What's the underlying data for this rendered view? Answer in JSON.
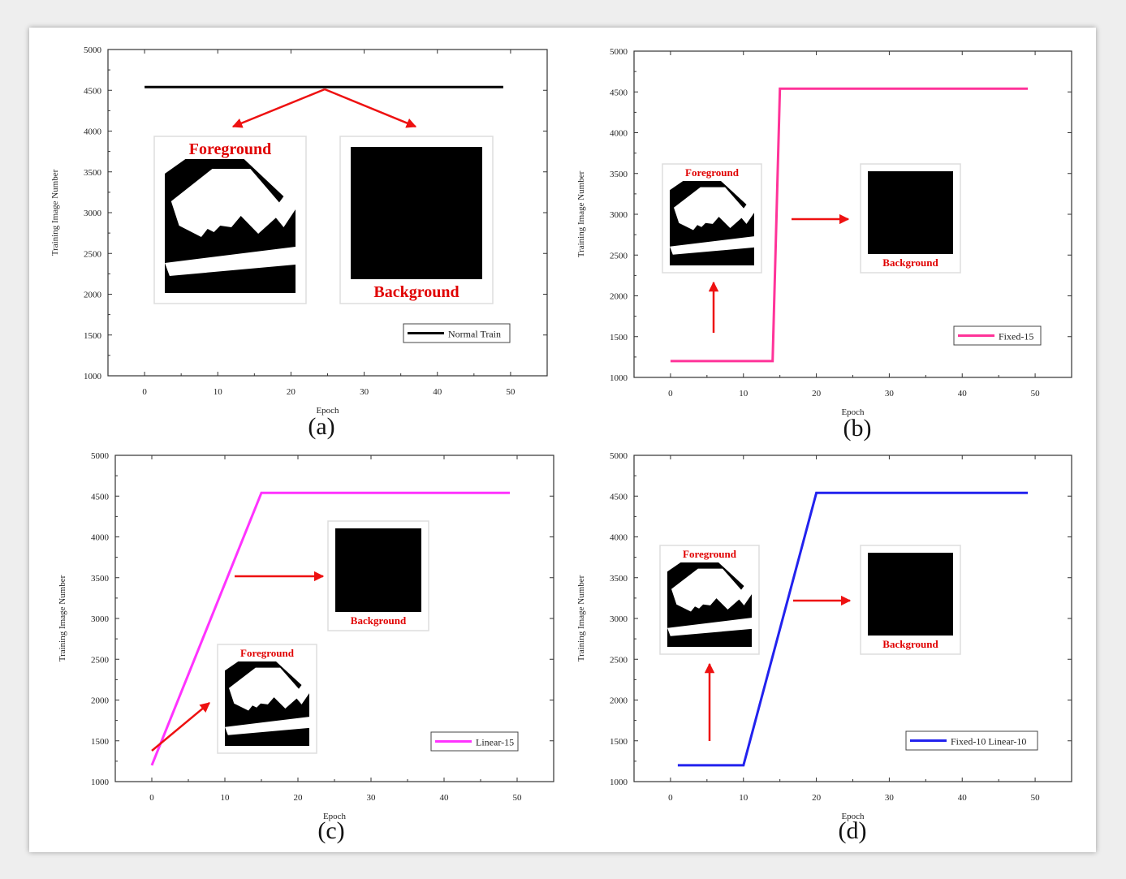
{
  "chart_data": [
    {
      "panel": "(a)",
      "type": "line",
      "xlabel": "Epoch",
      "ylabel": "Training Image Number",
      "xlim": [
        -5,
        55
      ],
      "ylim": [
        1000,
        5000
      ],
      "xticks": [
        0,
        10,
        20,
        30,
        40,
        50
      ],
      "yticks": [
        1000,
        1500,
        2000,
        2500,
        3000,
        3500,
        4000,
        4500,
        5000
      ],
      "series": [
        {
          "name": "Normal Train",
          "color": "#000000",
          "x": [
            0,
            49
          ],
          "y": [
            4540,
            4540
          ]
        }
      ],
      "legend_position": "bottom-right",
      "annotations": {
        "foreground_label": "Foreground",
        "background_label": "Background"
      }
    },
    {
      "panel": "(b)",
      "type": "line",
      "xlabel": "Epoch",
      "ylabel": "Training Image Number",
      "xlim": [
        -5,
        55
      ],
      "ylim": [
        1000,
        5000
      ],
      "xticks": [
        0,
        10,
        20,
        30,
        40,
        50
      ],
      "yticks": [
        1000,
        1500,
        2000,
        2500,
        3000,
        3500,
        4000,
        4500,
        5000
      ],
      "series": [
        {
          "name": "Fixed-15",
          "color": "#ff3399",
          "x": [
            0,
            14,
            15,
            49
          ],
          "y": [
            1200,
            1200,
            4540,
            4540
          ]
        }
      ],
      "legend_position": "bottom-right",
      "annotations": {
        "foreground_label": "Foreground",
        "background_label": "Background"
      }
    },
    {
      "panel": "(c)",
      "type": "line",
      "xlabel": "Epoch",
      "ylabel": "Training Image Number",
      "xlim": [
        -5,
        55
      ],
      "ylim": [
        1000,
        5000
      ],
      "xticks": [
        0,
        10,
        20,
        30,
        40,
        50
      ],
      "yticks": [
        1000,
        1500,
        2000,
        2500,
        3000,
        3500,
        4000,
        4500,
        5000
      ],
      "series": [
        {
          "name": "Linear-15",
          "color": "#ff33ff",
          "x": [
            0,
            15,
            49
          ],
          "y": [
            1200,
            4540,
            4540
          ]
        }
      ],
      "legend_position": "bottom-right",
      "annotations": {
        "foreground_label": "Foreground",
        "background_label": "Background"
      }
    },
    {
      "panel": "(d)",
      "type": "line",
      "xlabel": "Epoch",
      "ylabel": "Training Image Number",
      "xlim": [
        -5,
        55
      ],
      "ylim": [
        1000,
        5000
      ],
      "xticks": [
        0,
        10,
        20,
        30,
        40,
        50
      ],
      "yticks": [
        1000,
        1500,
        2000,
        2500,
        3000,
        3500,
        4000,
        4500,
        5000
      ],
      "series": [
        {
          "name": "Fixed-10 Linear-10",
          "color": "#2222ee",
          "x": [
            1,
            10,
            20,
            49
          ],
          "y": [
            1200,
            1200,
            4540,
            4540
          ]
        }
      ],
      "legend_position": "bottom-right",
      "annotations": {
        "foreground_label": "Foreground",
        "background_label": "Background"
      }
    }
  ],
  "colors": {
    "arrow": "#ee1111",
    "inset_label": "#e00000"
  }
}
